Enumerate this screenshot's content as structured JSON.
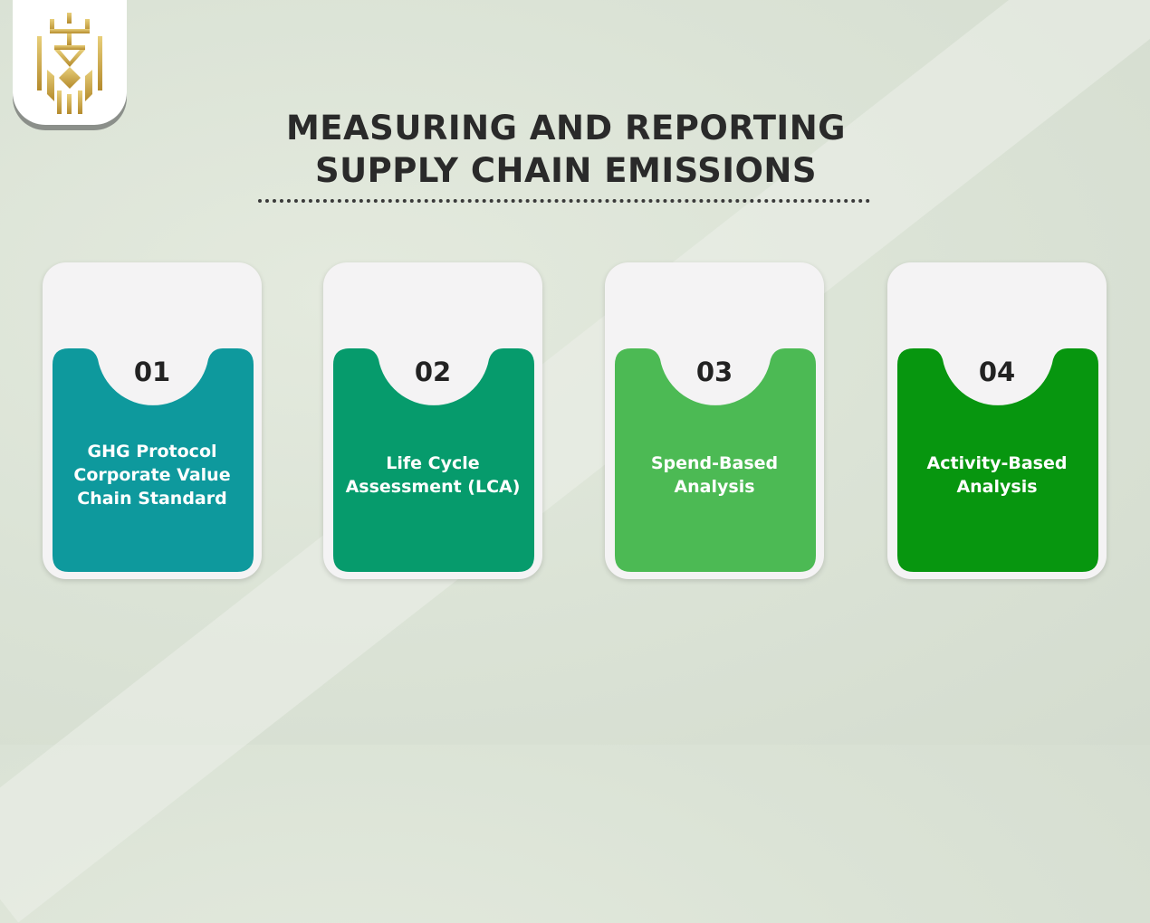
{
  "title": {
    "line1": "MEASURING AND REPORTING",
    "line2": "SUPPLY CHAIN EMISSIONS"
  },
  "logo": {
    "icon": "gold-crown-shield-logo",
    "color": "#c9a542"
  },
  "cards": [
    {
      "number": "01",
      "label": "GHG Protocol Corporate Value Chain Standard",
      "color": "#0e999d"
    },
    {
      "number": "02",
      "label": "Life Cycle Assessment (LCA)",
      "color": "#069b6c"
    },
    {
      "number": "03",
      "label": "Spend-Based Analysis",
      "color": "#4cba54"
    },
    {
      "number": "04",
      "label": "Activity-Based Analysis",
      "color": "#07960f"
    }
  ]
}
